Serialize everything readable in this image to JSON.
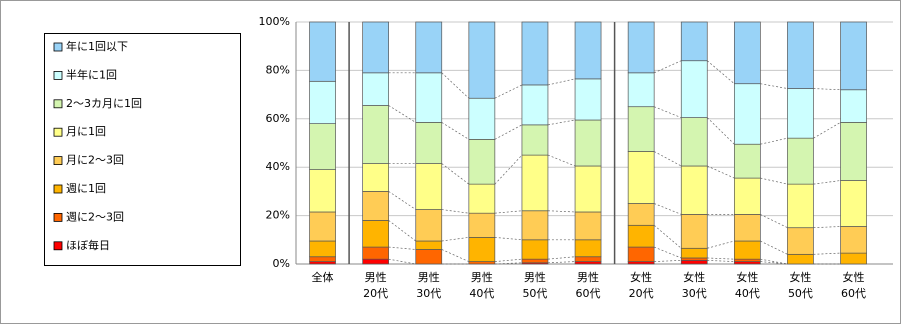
{
  "chart_data": {
    "type": "stacked_bar_100",
    "categories": [
      "全体",
      "男性\n20代",
      "男性\n30代",
      "男性\n40代",
      "男性\n50代",
      "男性\n60代",
      "女性\n20代",
      "女性\n30代",
      "女性\n40代",
      "女性\n50代",
      "女性\n60代"
    ],
    "series": [
      {
        "name": "ほぼ毎日",
        "color": "#ff0000",
        "values": [
          1,
          2,
          0,
          0,
          0.5,
          1,
          1,
          1.5,
          1,
          0,
          0
        ]
      },
      {
        "name": "週に2～3回",
        "color": "#ff6600",
        "values": [
          2,
          5,
          6,
          1,
          1.5,
          2,
          6,
          1,
          1,
          0,
          0
        ]
      },
      {
        "name": "週に1回",
        "color": "#ffb400",
        "values": [
          6.5,
          11,
          3.5,
          10,
          8,
          7,
          9,
          4,
          7.5,
          4,
          4.5
        ]
      },
      {
        "name": "月に2～3回",
        "color": "#ffcc55",
        "values": [
          12,
          12,
          13,
          10,
          12,
          11.5,
          9,
          14,
          11,
          11,
          11
        ]
      },
      {
        "name": "月に1回",
        "color": "#ffff88",
        "values": [
          17.5,
          11.5,
          19,
          12,
          23,
          19,
          21.5,
          20,
          15,
          18,
          19
        ]
      },
      {
        "name": "2～3カ月に1回",
        "color": "#d4f5b0",
        "values": [
          19,
          24,
          17,
          18.5,
          12.5,
          19,
          18.5,
          20,
          14,
          19,
          24
        ]
      },
      {
        "name": "半年に1回",
        "color": "#ccffff",
        "values": [
          17.5,
          13.5,
          20.5,
          17,
          16.5,
          17,
          14,
          23.5,
          25,
          20.5,
          13.5
        ]
      },
      {
        "name": "年に1回以下",
        "color": "#99d3f7",
        "values": [
          24.5,
          21,
          21,
          31.5,
          26,
          23.5,
          21,
          16,
          25.5,
          27.5,
          28
        ]
      }
    ],
    "ylim": [
      0,
      100
    ],
    "yticks": [
      {
        "value": 0,
        "label": "0%"
      },
      {
        "value": 20,
        "label": "20%"
      },
      {
        "value": 40,
        "label": "40%"
      },
      {
        "value": 60,
        "label": "60%"
      },
      {
        "value": 80,
        "label": "80%"
      },
      {
        "value": 100,
        "label": "100%"
      }
    ],
    "grid": true,
    "legend": "left"
  }
}
